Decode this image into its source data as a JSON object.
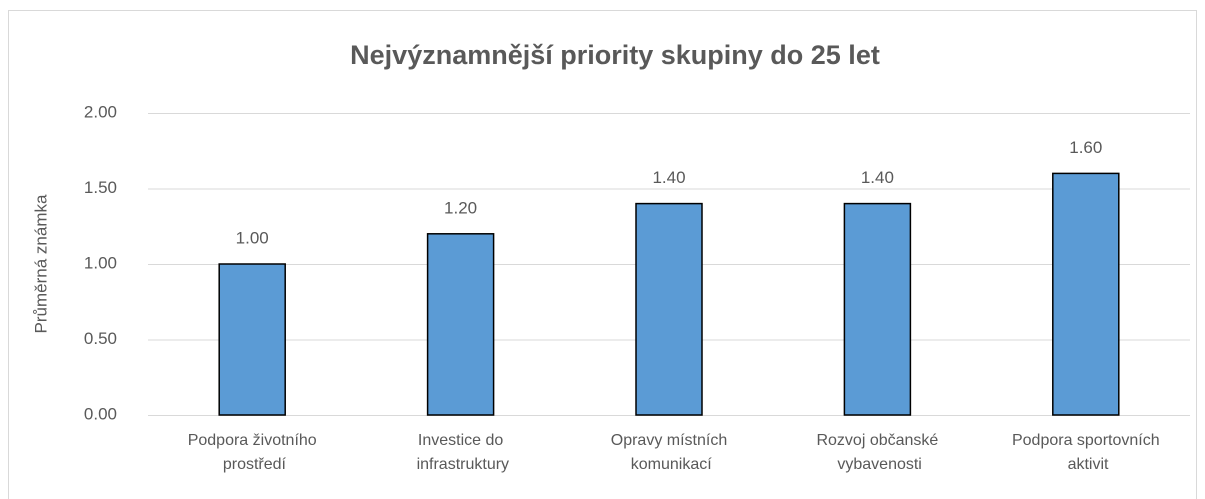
{
  "chart_data": {
    "type": "bar",
    "title": "Nejvýznamnější priority skupiny do 25 let",
    "ylabel": "Průměrná známka",
    "categories": [
      "Podpora životního prostředí",
      "Investice do infrastruktury",
      "Opravy místních komunikací",
      "Rozvoj občanské vybavenosti",
      "Podpora sportovních aktivit"
    ],
    "values": [
      1.0,
      1.2,
      1.4,
      1.4,
      1.6
    ],
    "value_labels": [
      "1.00",
      "1.20",
      "1.40",
      "1.40",
      "1.60"
    ],
    "color": "#5b9bd5",
    "ylim": [
      0,
      2
    ],
    "yticks": [
      {
        "value": 0,
        "label": "0.00"
      },
      {
        "value": 0.5,
        "label": "0.50"
      },
      {
        "value": 1,
        "label": "1.00"
      },
      {
        "value": 1.5,
        "label": "1.50"
      },
      {
        "value": 2,
        "label": "2.00"
      }
    ],
    "grid": true
  }
}
